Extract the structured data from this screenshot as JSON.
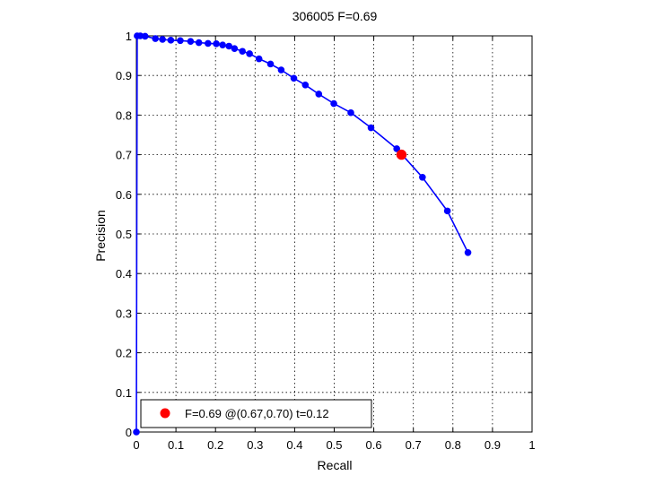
{
  "chart_data": {
    "type": "line",
    "title": "306005 F=0.69",
    "xlabel": "Recall",
    "ylabel": "Precision",
    "xlim": [
      0,
      1
    ],
    "ylim": [
      0,
      1
    ],
    "xticks": [
      "0",
      "0.1",
      "0.2",
      "0.3",
      "0.4",
      "0.5",
      "0.6",
      "0.7",
      "0.8",
      "0.9",
      "1"
    ],
    "yticks": [
      "0",
      "0.1",
      "0.2",
      "0.3",
      "0.4",
      "0.5",
      "0.6",
      "0.7",
      "0.8",
      "0.9",
      "1"
    ],
    "grid": true,
    "legend_position": "bottom-left",
    "series": [
      {
        "color": "#0000ff",
        "points": [
          [
            0.0,
            0.0
          ],
          [
            0.002,
            1.0
          ],
          [
            0.01,
            1.0
          ],
          [
            0.022,
            0.999
          ],
          [
            0.048,
            0.993
          ],
          [
            0.066,
            0.991
          ],
          [
            0.087,
            0.989
          ],
          [
            0.111,
            0.988
          ],
          [
            0.137,
            0.986
          ],
          [
            0.158,
            0.983
          ],
          [
            0.181,
            0.981
          ],
          [
            0.202,
            0.98
          ],
          [
            0.218,
            0.977
          ],
          [
            0.234,
            0.974
          ],
          [
            0.248,
            0.968
          ],
          [
            0.268,
            0.961
          ],
          [
            0.286,
            0.955
          ],
          [
            0.31,
            0.942
          ],
          [
            0.339,
            0.929
          ],
          [
            0.366,
            0.914
          ],
          [
            0.398,
            0.893
          ],
          [
            0.427,
            0.876
          ],
          [
            0.461,
            0.853
          ],
          [
            0.499,
            0.829
          ],
          [
            0.542,
            0.806
          ],
          [
            0.593,
            0.768
          ],
          [
            0.658,
            0.715
          ],
          [
            0.723,
            0.643
          ],
          [
            0.786,
            0.558
          ],
          [
            0.838,
            0.453
          ]
        ]
      }
    ],
    "highlight": {
      "x": 0.67,
      "y": 0.7,
      "color": "#ff0000",
      "label": "F=0.69 @(0.67,0.70) t=0.12"
    }
  }
}
